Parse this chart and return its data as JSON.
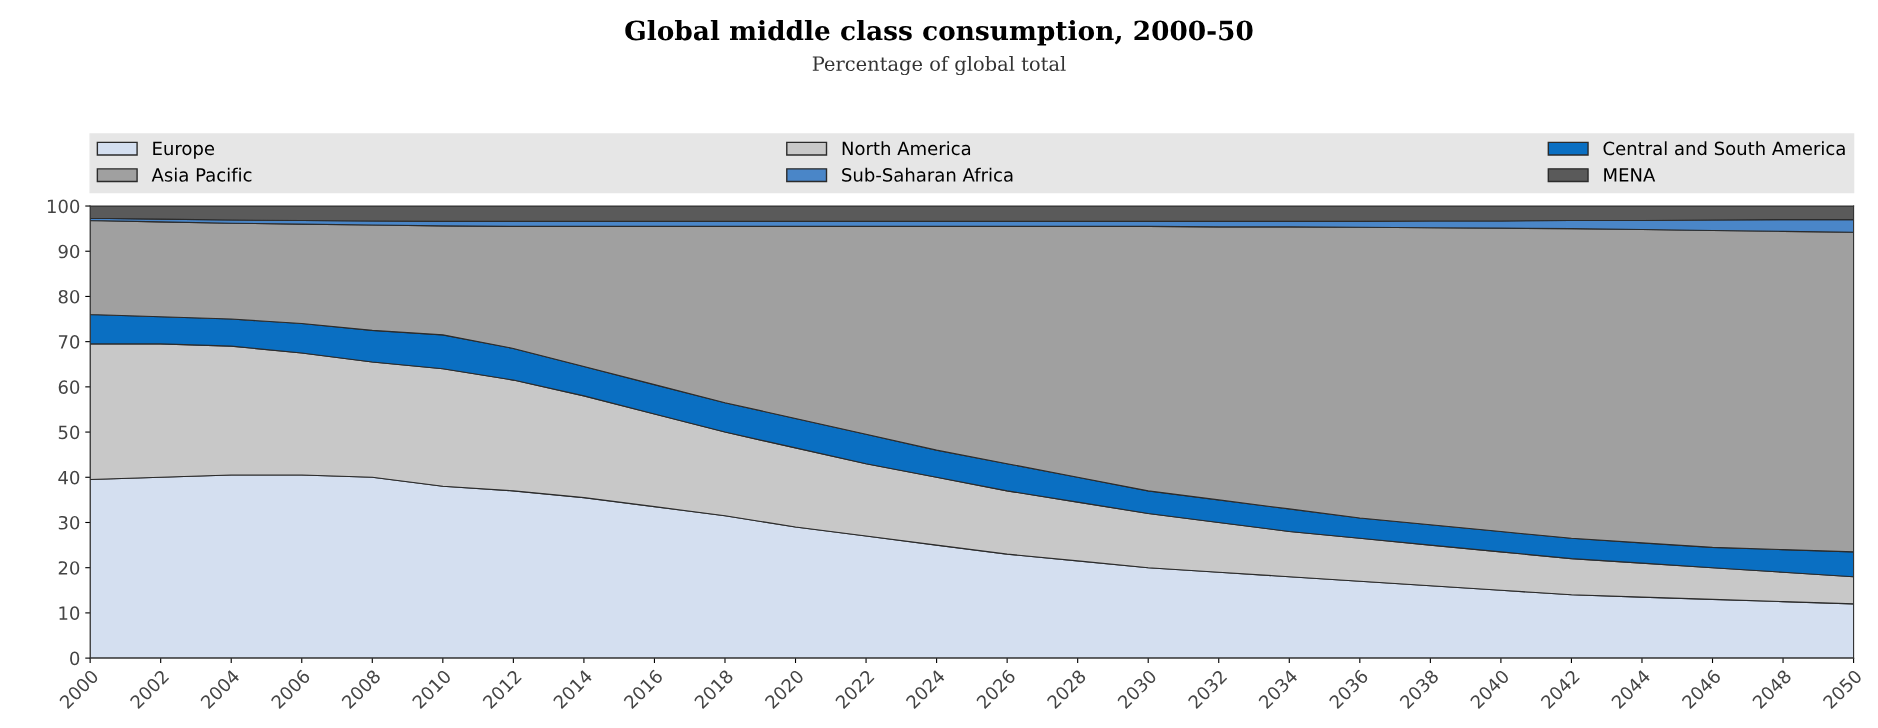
{
  "chart_data": {
    "type": "area",
    "stacked": true,
    "title": "Global middle class consumption, 2000-50",
    "subtitle": "Percentage of global total",
    "x": [
      2000,
      2002,
      2004,
      2006,
      2008,
      2010,
      2012,
      2014,
      2016,
      2018,
      2020,
      2022,
      2024,
      2026,
      2028,
      2030,
      2032,
      2034,
      2036,
      2038,
      2040,
      2042,
      2044,
      2046,
      2048,
      2050
    ],
    "series": [
      {
        "name": "Europe",
        "color": "#d4dff0",
        "values": [
          39.5,
          40,
          40.5,
          40.5,
          40,
          38,
          37,
          35.5,
          33.5,
          31.5,
          29,
          27,
          25,
          23,
          21.5,
          20,
          19,
          18,
          17,
          16,
          15,
          14,
          13.5,
          13,
          12.5,
          12
        ]
      },
      {
        "name": "North America",
        "color": "#c8c8c8",
        "values": [
          30,
          29.5,
          28.5,
          27,
          25.5,
          26,
          24.5,
          22.5,
          20.5,
          18.5,
          17.5,
          16,
          15,
          14,
          13,
          12,
          11,
          10,
          9.5,
          9,
          8.5,
          8,
          7.5,
          7,
          6.5,
          6
        ]
      },
      {
        "name": "Central and South America",
        "color": "#0a6fc2",
        "values": [
          6.5,
          6,
          6,
          6.5,
          7,
          7.5,
          7,
          6.5,
          6.5,
          6.5,
          6.5,
          6.5,
          6,
          6,
          5.5,
          5,
          5,
          5,
          4.5,
          4.5,
          4.5,
          4.5,
          4.5,
          4.5,
          5,
          5.5
        ]
      },
      {
        "name": "Asia Pacific",
        "color": "#a0a0a0",
        "values": [
          20.8,
          21,
          21.2,
          22,
          23.3,
          24.1,
          27,
          31,
          35,
          39,
          42.5,
          46,
          49.5,
          52.5,
          55.5,
          58.5,
          60.4,
          62.4,
          64.3,
          65.7,
          67.1,
          68.5,
          69.3,
          70.1,
          70.4,
          70.7
        ]
      },
      {
        "name": "Sub-Saharan Africa",
        "color": "#4a86c8",
        "values": [
          0.5,
          0.6,
          0.7,
          0.8,
          0.9,
          1,
          1.1,
          1.1,
          1.1,
          1.1,
          1.1,
          1.1,
          1.1,
          1.1,
          1.1,
          1.1,
          1.2,
          1.2,
          1.3,
          1.5,
          1.6,
          1.8,
          2,
          2.3,
          2.6,
          2.8
        ]
      },
      {
        "name": "MENA",
        "color": "#5a5a5a",
        "values": [
          2.7,
          2.9,
          3.1,
          3.2,
          3.3,
          3.4,
          3.4,
          3.4,
          3.4,
          3.4,
          3.4,
          3.4,
          3.4,
          3.4,
          3.4,
          3.4,
          3.4,
          3.4,
          3.4,
          3.3,
          3.3,
          3.2,
          3.2,
          3.1,
          3,
          3
        ]
      }
    ],
    "xlim": [
      2000,
      2050
    ],
    "xticks": [
      2000,
      2002,
      2004,
      2006,
      2008,
      2010,
      2012,
      2014,
      2016,
      2018,
      2020,
      2022,
      2024,
      2026,
      2028,
      2030,
      2032,
      2034,
      2036,
      2038,
      2040,
      2042,
      2044,
      2046,
      2048,
      2050
    ],
    "ylim": [
      0,
      100
    ],
    "yticks": [
      0,
      10,
      20,
      30,
      40,
      50,
      60,
      70,
      80,
      90,
      100
    ],
    "grid": false,
    "legend": "top"
  }
}
